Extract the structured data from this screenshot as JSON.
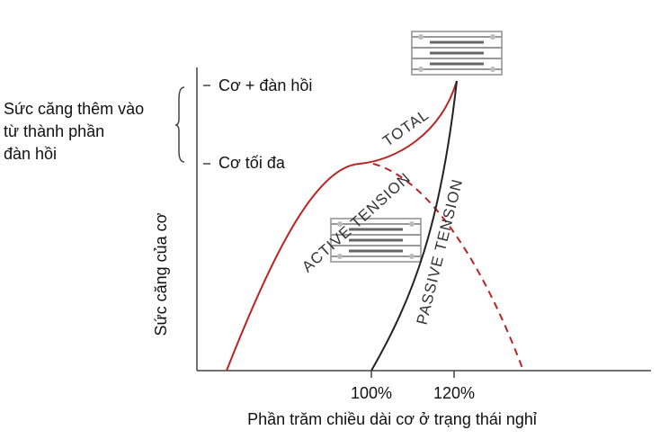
{
  "axes": {
    "y_label": "Sức căng của cơ",
    "x_label": "Phần trăm chiều dài cơ ở trạng thái nghỉ",
    "y_ticks": [
      "Cơ + đàn hồi",
      "Cơ tối đa"
    ],
    "x_ticks": [
      "100%",
      "120%"
    ]
  },
  "annotation": {
    "lines": [
      "Sức căng thêm vào",
      "từ thành phần",
      "đàn hồi"
    ]
  },
  "curves": {
    "total": "TOTAL",
    "active": "ACTIVE TENSION",
    "passive": "PASSIVE TENSION"
  }
}
